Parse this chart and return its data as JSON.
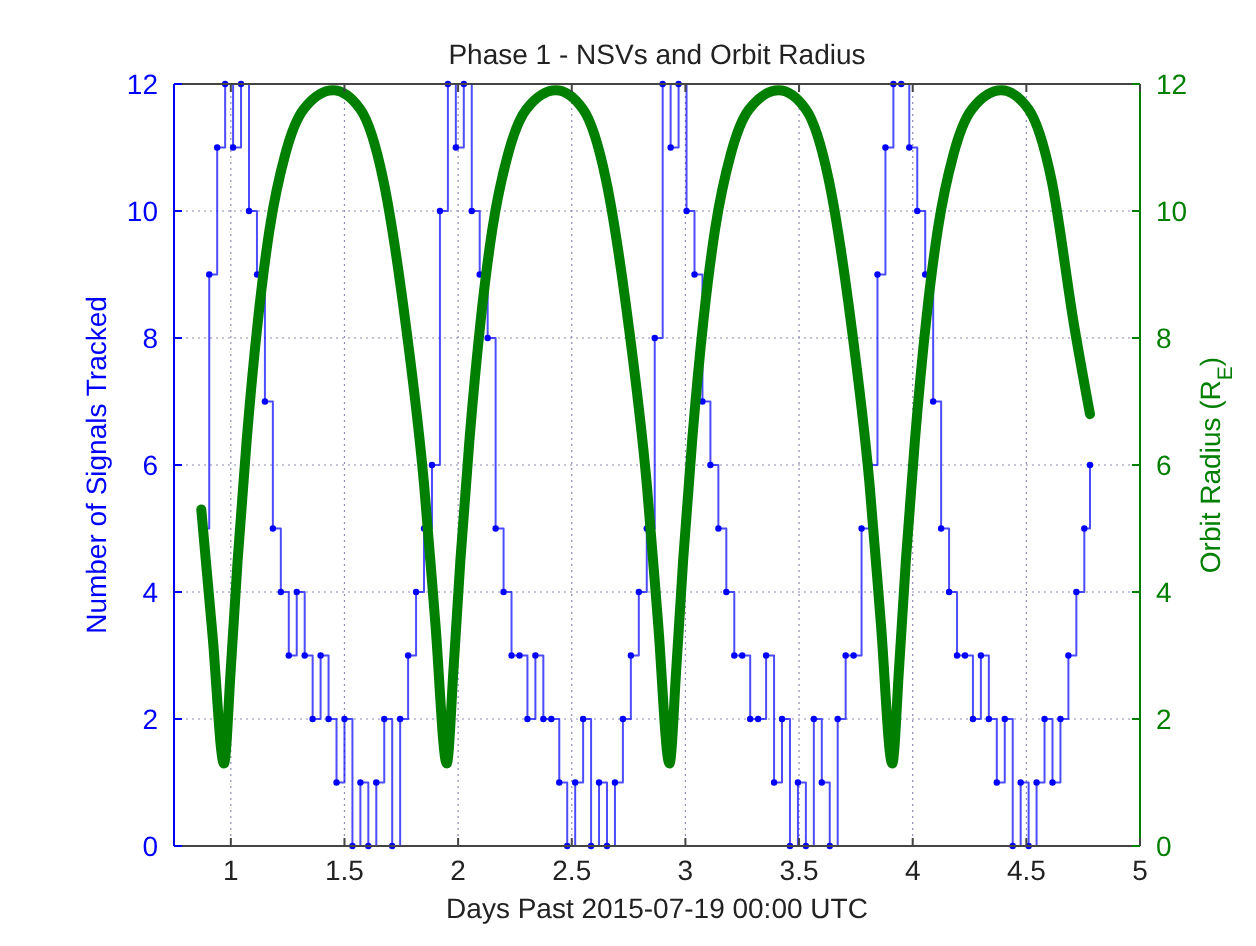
{
  "chart_data": {
    "type": "step",
    "title": "Phase 1 - NSVs and Orbit Radius",
    "xlabel": "Days Past 2015-07-19 00:00 UTC",
    "ylabel": "Number of Signals Tracked",
    "y2label": "Orbit Radius (R$_{E}$)",
    "xlim": [
      0.75,
      5
    ],
    "xticks": [
      1,
      1.5,
      2,
      2.5,
      3,
      3.5,
      4,
      4.5,
      5
    ],
    "ylim": [
      0,
      12
    ],
    "yticks": [
      0,
      2,
      4,
      6,
      8,
      10,
      12
    ],
    "y2lim": [
      0,
      12
    ],
    "y2ticks": [
      0,
      2,
      4,
      6,
      8,
      10,
      12
    ],
    "grid": true,
    "series": [
      {
        "color": "#0000ff",
        "marker": "circle",
        "x": [
          0.87,
          0.905,
          0.94,
          0.975,
          1.01,
          1.045,
          1.08,
          1.115,
          1.15,
          1.185,
          1.22,
          1.255,
          1.29,
          1.325,
          1.36,
          1.395,
          1.43,
          1.465,
          1.5,
          1.535,
          1.57,
          1.605,
          1.64,
          1.675,
          1.71,
          1.745,
          1.78,
          1.815,
          1.85,
          1.885,
          1.92,
          1.955,
          1.99,
          2.025,
          2.06,
          2.095,
          2.13,
          2.165,
          2.2,
          2.235,
          2.27,
          2.305,
          2.34,
          2.375,
          2.41,
          2.445,
          2.48,
          2.515,
          2.55,
          2.585,
          2.62,
          2.655,
          2.69,
          2.725,
          2.76,
          2.795,
          2.83,
          2.865,
          2.9,
          2.935,
          2.97,
          3.005,
          3.04,
          3.075,
          3.11,
          3.145,
          3.18,
          3.215,
          3.25,
          3.285,
          3.32,
          3.355,
          3.39,
          3.425,
          3.46,
          3.495,
          3.53,
          3.565,
          3.6,
          3.635,
          3.67,
          3.705,
          3.74,
          3.775,
          3.81,
          3.845,
          3.88,
          3.915,
          3.95,
          3.985,
          4.02,
          4.055,
          4.09,
          4.125,
          4.16,
          4.195,
          4.23,
          4.265,
          4.3,
          4.335,
          4.37,
          4.405,
          4.44,
          4.475,
          4.51,
          4.545,
          4.58,
          4.615,
          4.65,
          4.685,
          4.72,
          4.755,
          4.78
        ],
        "values": [
          5,
          9,
          11,
          12,
          11,
          12,
          10,
          9,
          7,
          5,
          4,
          3,
          4,
          3,
          2,
          3,
          2,
          1,
          2,
          0,
          1,
          0,
          1,
          2,
          0,
          2,
          3,
          4,
          5,
          6,
          10,
          12,
          11,
          12,
          10,
          9,
          8,
          5,
          4,
          3,
          3,
          2,
          3,
          2,
          2,
          1,
          0,
          1,
          2,
          0,
          1,
          0,
          1,
          2,
          3,
          4,
          5,
          8,
          12,
          11,
          12,
          10,
          9,
          7,
          6,
          5,
          4,
          3,
          3,
          2,
          2,
          3,
          1,
          2,
          0,
          1,
          0,
          2,
          1,
          0,
          2,
          3,
          3,
          5,
          6,
          9,
          11,
          12,
          12,
          11,
          10,
          9,
          7,
          5,
          4,
          3,
          3,
          2,
          3,
          2,
          1,
          2,
          0,
          1,
          0,
          1,
          2,
          1,
          2,
          3,
          4,
          5,
          6
        ]
      },
      {
        "type": "line",
        "axis": "y2",
        "color": "#007f00",
        "marker": "none",
        "x": [
          0.87,
          0.92,
          0.97,
          1.0,
          1.03,
          1.07,
          1.12,
          1.17,
          1.24,
          1.32,
          1.45,
          1.57,
          1.67,
          1.77,
          1.85,
          1.9,
          1.95,
          1.98,
          2.01,
          2.05,
          2.1,
          2.15,
          2.22,
          2.3,
          2.43,
          2.55,
          2.65,
          2.75,
          2.83,
          2.88,
          2.93,
          2.96,
          2.99,
          3.03,
          3.08,
          3.13,
          3.2,
          3.28,
          3.41,
          3.53,
          3.63,
          3.73,
          3.81,
          3.86,
          3.91,
          3.94,
          3.97,
          4.01,
          4.06,
          4.11,
          4.18,
          4.26,
          4.39,
          4.51,
          4.61,
          4.71,
          4.78
        ],
        "values": [
          5.3,
          3.3,
          1.3,
          2.8,
          4.5,
          6.4,
          8.3,
          9.7,
          10.9,
          11.6,
          11.9,
          11.6,
          10.5,
          8.2,
          5.7,
          3.5,
          1.3,
          2.8,
          4.5,
          6.4,
          8.3,
          9.7,
          10.9,
          11.6,
          11.9,
          11.6,
          10.5,
          8.2,
          5.7,
          3.5,
          1.3,
          2.8,
          4.5,
          6.4,
          8.3,
          9.7,
          10.9,
          11.6,
          11.9,
          11.6,
          10.5,
          8.2,
          5.7,
          3.5,
          1.3,
          2.8,
          4.5,
          6.4,
          8.3,
          9.7,
          10.9,
          11.6,
          11.9,
          11.6,
          10.5,
          8.2,
          6.8
        ]
      }
    ]
  }
}
